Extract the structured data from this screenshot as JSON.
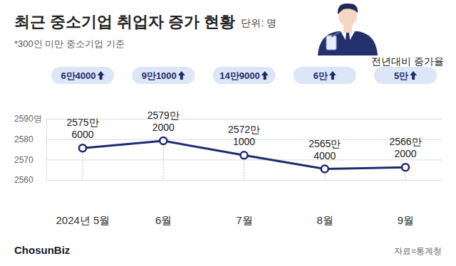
{
  "chart_data": {
    "type": "line",
    "title": "최근 중소기업 취업자 증가 현황",
    "unit_note": "단위: 명",
    "subtitle": "*300인 미만 중소기업 기준",
    "categories": [
      "2024년 5월",
      "6월",
      "7월",
      "8월",
      "9월"
    ],
    "values": [
      2575.6,
      2579.2,
      2572.1,
      2565.4,
      2566.2
    ],
    "value_labels": [
      "2575만\n6000",
      "2579만\n2000",
      "2572만\n1000",
      "2565만\n4000",
      "2566만\n2000"
    ],
    "increase": {
      "title": "전년대비 증가율",
      "values": [
        6.4,
        9.1,
        14.9,
        6,
        5
      ],
      "value_labels": [
        "6만4000",
        "9만1000",
        "14만9000",
        "6만",
        "5만"
      ]
    },
    "ylim": [
      2560,
      2590
    ],
    "yticks": [
      2560,
      2570,
      2580,
      {
        "value": 2590,
        "label": "2590명"
      }
    ],
    "grid": true,
    "data_labels": true,
    "marker": "circle",
    "color": "#1f2a6e",
    "source": "자료=통계청",
    "logo": "ChosunBiz"
  }
}
